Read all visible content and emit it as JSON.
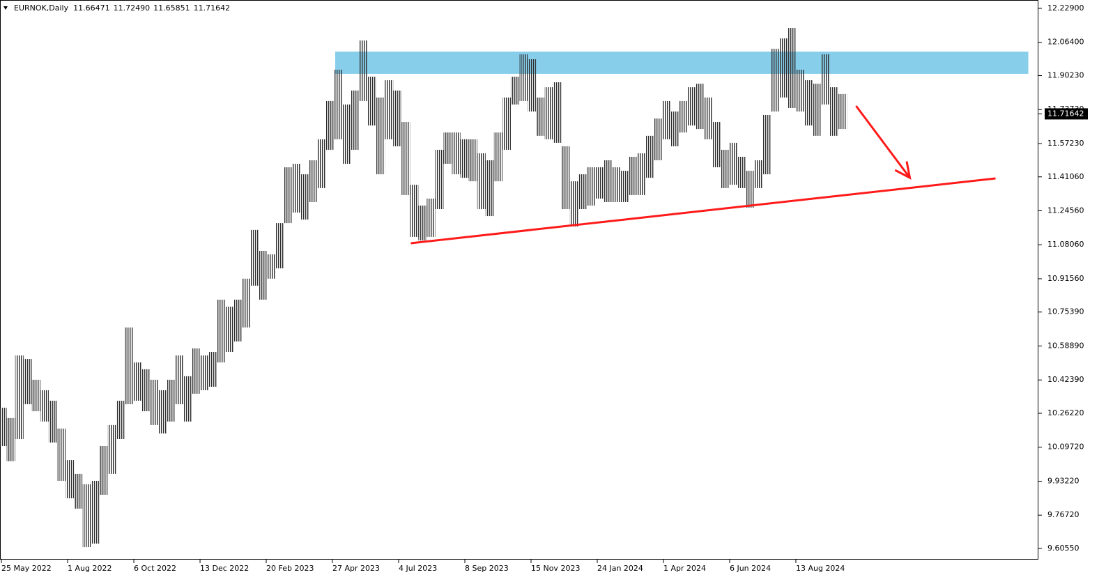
{
  "chart_data": {
    "type": "range",
    "symbol": "EURNOK,Daily",
    "header_ohlc": [
      11.66471,
      11.7249,
      11.65851,
      11.71642
    ],
    "header_ohlc_labels": [
      "11.66471",
      "11.72490",
      "11.65851",
      "11.71642"
    ],
    "last_price": 11.71642,
    "color": "#3c3c3c",
    "high": [
      10.289,
      10.239,
      10.543,
      10.526,
      10.425,
      10.374,
      10.323,
      10.188,
      10.035,
      9.968,
      9.917,
      9.934,
      10.103,
      10.205,
      10.323,
      10.679,
      10.509,
      10.476,
      10.425,
      10.374,
      10.425,
      10.543,
      10.442,
      10.577,
      10.543,
      10.56,
      10.814,
      10.78,
      10.814,
      10.916,
      11.153,
      11.051,
      11.034,
      11.186,
      11.457,
      11.474,
      11.423,
      11.491,
      11.593,
      11.779,
      11.931,
      11.762,
      11.83,
      12.073,
      11.897,
      11.796,
      11.88,
      11.83,
      11.677,
      11.372,
      11.271,
      11.305,
      11.542,
      11.626,
      11.626,
      11.593,
      11.593,
      11.525,
      11.491,
      11.626,
      11.796,
      11.897,
      12.006,
      11.982,
      11.796,
      11.846,
      11.87,
      11.559,
      11.389,
      11.423,
      11.457,
      11.457,
      11.491,
      11.457,
      11.44,
      11.508,
      11.525,
      11.61,
      11.694,
      11.779,
      11.728,
      11.779,
      11.846,
      11.863,
      11.796,
      11.677,
      11.542,
      11.576,
      11.508,
      11.44,
      11.491,
      11.711,
      12.033,
      12.083,
      12.134,
      11.931,
      11.88,
      11.863,
      12.006,
      11.846,
      11.813
    ],
    "low": [
      10.103,
      10.029,
      10.137,
      10.306,
      10.272,
      10.222,
      10.12,
      9.934,
      9.849,
      9.799,
      9.612,
      9.629,
      9.866,
      9.968,
      10.137,
      10.306,
      10.323,
      10.272,
      10.205,
      10.164,
      10.222,
      10.306,
      10.222,
      10.357,
      10.374,
      10.391,
      10.509,
      10.56,
      10.611,
      10.679,
      10.882,
      10.814,
      10.916,
      10.966,
      11.186,
      11.237,
      11.203,
      11.288,
      11.356,
      11.542,
      11.593,
      11.474,
      11.542,
      11.779,
      11.66,
      11.423,
      11.593,
      11.559,
      11.322,
      11.119,
      11.102,
      11.119,
      11.254,
      11.474,
      11.423,
      11.406,
      11.389,
      11.254,
      11.22,
      11.389,
      11.542,
      11.762,
      11.779,
      11.728,
      11.61,
      11.593,
      11.576,
      11.254,
      11.169,
      11.254,
      11.271,
      11.305,
      11.288,
      11.288,
      11.288,
      11.322,
      11.322,
      11.406,
      11.491,
      11.593,
      11.559,
      11.626,
      11.66,
      11.643,
      11.593,
      11.457,
      11.356,
      11.372,
      11.356,
      11.261,
      11.356,
      11.423,
      11.728,
      11.796,
      11.745,
      11.728,
      11.66,
      11.61,
      11.762,
      11.61,
      11.643
    ],
    "xlim": [
      -0.3,
      123.3
    ],
    "xticks": [
      {
        "value": -0.13,
        "label": "25 May 2022"
      },
      {
        "value": 7.75,
        "label": "1 Aug 2022"
      },
      {
        "value": 15.63,
        "label": "6 Oct 2022"
      },
      {
        "value": 23.51,
        "label": "13 Dec 2022"
      },
      {
        "value": 31.39,
        "label": "20 Feb 2023"
      },
      {
        "value": 39.27,
        "label": "27 Apr 2023"
      },
      {
        "value": 47.15,
        "label": "4 Jul 2023"
      },
      {
        "value": 55.03,
        "label": "8 Sep 2023"
      },
      {
        "value": 62.91,
        "label": "15 Nov 2023"
      },
      {
        "value": 70.79,
        "label": "24 Jan 2024"
      },
      {
        "value": 78.67,
        "label": "1 Apr 2024"
      },
      {
        "value": 86.55,
        "label": "6 Jun 2024"
      },
      {
        "value": 94.43,
        "label": "13 Aug 2024"
      }
    ],
    "ylim": [
      9.5513,
      12.2696
    ],
    "yticks": [
      {
        "value": 12.229,
        "label": "12.22900"
      },
      {
        "value": 12.064,
        "label": "12.06400"
      },
      {
        "value": 11.9023,
        "label": "11.90230"
      },
      {
        "value": 11.7373,
        "label": "11.73730"
      },
      {
        "value": 11.5723,
        "label": "11.57230"
      },
      {
        "value": 11.4106,
        "label": "11.41060"
      },
      {
        "value": 11.2456,
        "label": "11.24560"
      },
      {
        "value": 11.0806,
        "label": "11.08060"
      },
      {
        "value": 10.9156,
        "label": "10.91560"
      },
      {
        "value": 10.7539,
        "label": "10.75390"
      },
      {
        "value": 10.5889,
        "label": "10.58890"
      },
      {
        "value": 10.4239,
        "label": "10.42390"
      },
      {
        "value": 10.2622,
        "label": "10.26220"
      },
      {
        "value": 10.0972,
        "label": "10.09720"
      },
      {
        "value": 9.9322,
        "label": "9.93220"
      },
      {
        "value": 9.7672,
        "label": "9.76720"
      },
      {
        "value": 9.6055,
        "label": "9.60550"
      }
    ],
    "zone": {
      "x": [
        39.6,
        122.1
      ],
      "y": [
        11.911,
        12.019
      ],
      "color": "#87ceeb"
    },
    "trendline": {
      "x": [
        48.6,
        118.2
      ],
      "y": [
        11.088,
        11.403
      ],
      "color": "#ff1a1a"
    },
    "arrow": {
      "x": [
        101.6,
        108.0
      ],
      "y": [
        11.755,
        11.406
      ],
      "color": "#ff1a1a"
    }
  }
}
